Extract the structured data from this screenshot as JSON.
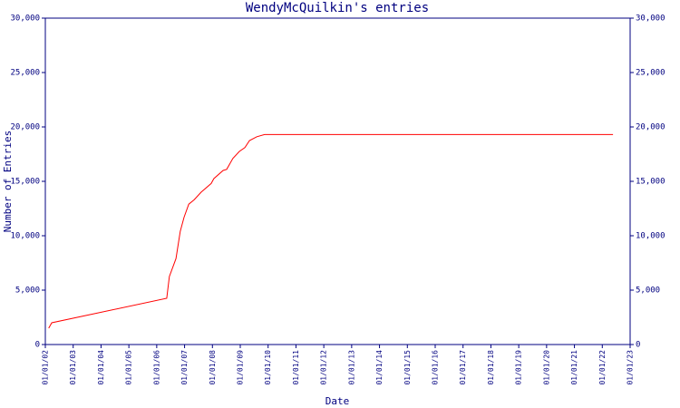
{
  "chart_data": {
    "type": "line",
    "title": "WendyMcQuilkin's entries",
    "x_label": "Date",
    "y_label": "Number of Entries",
    "x": [
      "02/15/02",
      "03/25/02",
      "05/10/06",
      "06/15/06",
      "09/10/06",
      "11/05/06",
      "12/25/06",
      "02/25/07",
      "05/05/07",
      "08/05/07",
      "12/15/07",
      "01/20/08",
      "05/20/08",
      "07/05/08",
      "09/25/08",
      "12/20/08",
      "03/01/09",
      "05/01/09",
      "08/05/09",
      "11/15/09",
      "05/20/22"
    ],
    "values": [
      1500,
      2000,
      4250,
      6250,
      7900,
      10400,
      11700,
      12900,
      13300,
      14000,
      14800,
      15250,
      16000,
      16100,
      17100,
      17750,
      18100,
      18750,
      19100,
      19300,
      19300
    ],
    "color": "#ff0000",
    "xlim": [
      "01/01/02",
      "01/01/23"
    ],
    "xticks": [
      "01/01/02",
      "01/01/03",
      "01/01/04",
      "01/01/05",
      "01/01/06",
      "01/01/07",
      "01/01/08",
      "01/01/09",
      "01/01/10",
      "01/01/11",
      "01/01/12",
      "01/01/13",
      "01/01/14",
      "01/01/15",
      "01/01/16",
      "01/01/17",
      "01/01/18",
      "01/01/19",
      "01/01/20",
      "01/01/21",
      "01/01/22",
      "01/01/23"
    ],
    "ylim": [
      0,
      30000
    ],
    "yticks": [
      0,
      {
        "value": 5000,
        "label": "5,000"
      },
      {
        "value": 10000,
        "label": "10,000"
      },
      {
        "value": 15000,
        "label": "15,000"
      },
      {
        "value": 20000,
        "label": "20,000"
      },
      {
        "value": 25000,
        "label": "25,000"
      },
      {
        "value": 30000,
        "label": "30,000"
      }
    ],
    "right_axis": true
  }
}
